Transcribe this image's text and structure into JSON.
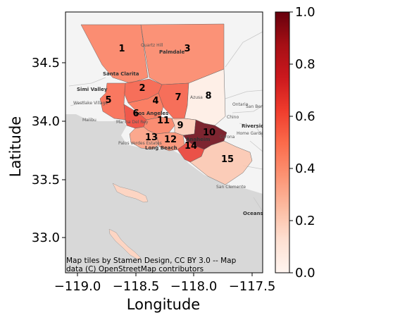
{
  "map": {
    "xlabel": "Longitude",
    "ylabel": "Latitude",
    "x_ticks": [
      "−119.0",
      "−118.5",
      "−118.0",
      "−117.5"
    ],
    "y_ticks": [
      "33.0",
      "33.5",
      "34.0",
      "34.5"
    ],
    "attribution_line1": "Map tiles by Stamen Design, CC BY 3.0 -- Map",
    "attribution_line2": "data (C) OpenStreetMap contributors",
    "place_names": [
      "Santa Clarita",
      "Simi Valley",
      "Palmdale",
      "Quartz Hill",
      "Los Angeles",
      "Long Beach",
      "Anaheim",
      "Riverside",
      "San Bern",
      "Home Gardens",
      "Corona",
      "Malibu",
      "Westlake Village",
      "Marina Del Rey",
      "Palos Verdes Estates",
      "San Clemente",
      "Oceanside",
      "Ontario",
      "Chino",
      "Azusa"
    ]
  },
  "colorbar": {
    "ticks": [
      "0.0",
      "0.2",
      "0.4",
      "0.6",
      "0.8",
      "1.0"
    ],
    "colormap": "Reds",
    "low_color": "#fff5f0",
    "high_color": "#67000d"
  },
  "regions": [
    {
      "id": "1",
      "value": 0.45
    },
    {
      "id": "2",
      "value": 0.55
    },
    {
      "id": "3",
      "value": 0.43
    },
    {
      "id": "4",
      "value": 0.5
    },
    {
      "id": "5",
      "value": 0.52
    },
    {
      "id": "6",
      "value": 0.62
    },
    {
      "id": "7",
      "value": 0.55
    },
    {
      "id": "8",
      "value": 0.05
    },
    {
      "id": "9",
      "value": 0.2
    },
    {
      "id": "10",
      "value": 1.0
    },
    {
      "id": "11",
      "value": 0.45
    },
    {
      "id": "12",
      "value": 0.4
    },
    {
      "id": "13",
      "value": 0.35
    },
    {
      "id": "14",
      "value": 0.65
    },
    {
      "id": "15",
      "value": 0.22
    }
  ]
}
